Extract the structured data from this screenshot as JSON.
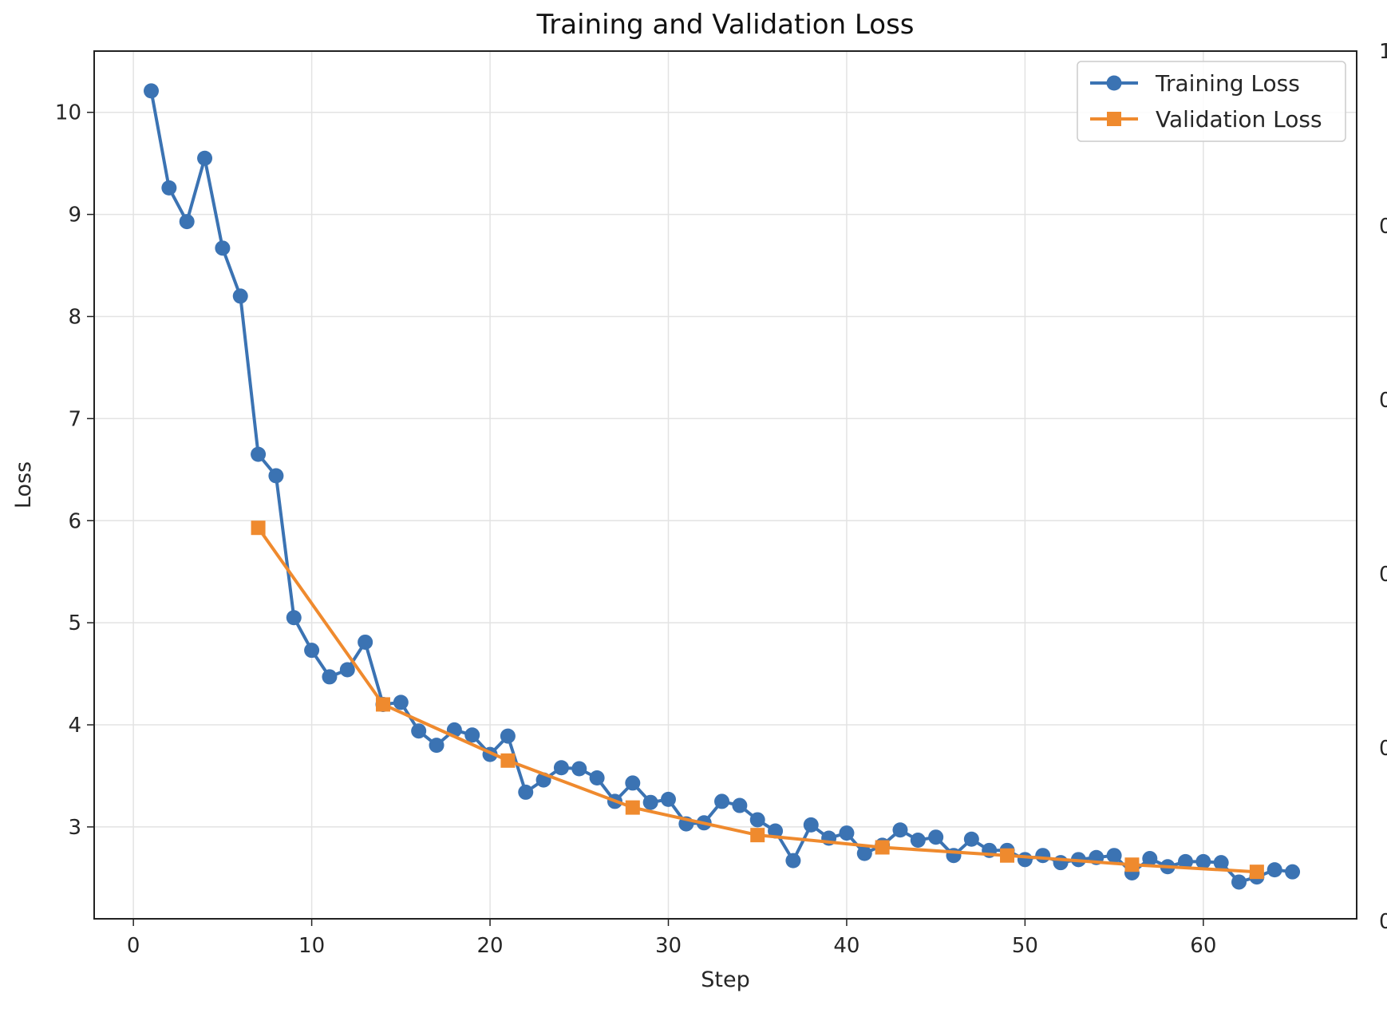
{
  "chart_data": {
    "type": "line",
    "title": "Training and Validation Loss",
    "xlabel": "Step",
    "ylabel": "Loss",
    "xlim": [
      -2.2,
      68.6
    ],
    "ylim": [
      2.1,
      10.6
    ],
    "xticks": [
      0,
      10,
      20,
      30,
      40,
      50,
      60
    ],
    "yticks": [
      3,
      4,
      5,
      6,
      7,
      8,
      9,
      10
    ],
    "grid": true,
    "legend_position": "top-right",
    "series": [
      {
        "name": "Training Loss",
        "color": "#3b73b3",
        "marker": "circle",
        "x": [
          1,
          2,
          3,
          4,
          5,
          6,
          7,
          8,
          9,
          10,
          11,
          12,
          13,
          14,
          15,
          16,
          17,
          18,
          19,
          20,
          21,
          22,
          23,
          24,
          25,
          26,
          27,
          28,
          29,
          30,
          31,
          32,
          33,
          34,
          35,
          36,
          37,
          38,
          39,
          40,
          41,
          42,
          43,
          44,
          45,
          46,
          47,
          48,
          49,
          50,
          51,
          52,
          53,
          54,
          55,
          56,
          57,
          58,
          59,
          60,
          61,
          62,
          63,
          64,
          65
        ],
        "values": [
          10.21,
          9.26,
          8.93,
          9.55,
          8.67,
          8.2,
          6.65,
          6.44,
          5.05,
          4.73,
          4.47,
          4.54,
          4.81,
          4.2,
          4.22,
          3.94,
          3.8,
          3.95,
          3.9,
          3.71,
          3.89,
          3.34,
          3.46,
          3.58,
          3.57,
          3.48,
          3.25,
          3.43,
          3.24,
          3.27,
          3.03,
          3.04,
          3.25,
          3.21,
          3.07,
          2.96,
          2.67,
          3.02,
          2.89,
          2.94,
          2.74,
          2.82,
          2.97,
          2.87,
          2.9,
          2.72,
          2.88,
          2.77,
          2.77,
          2.68,
          2.72,
          2.65,
          2.68,
          2.7,
          2.72,
          2.55,
          2.69,
          2.61,
          2.66,
          2.66,
          2.65,
          2.46,
          2.51,
          2.58,
          2.56
        ]
      },
      {
        "name": "Validation Loss",
        "color": "#ef8a2e",
        "marker": "square",
        "x": [
          7,
          14,
          21,
          28,
          35,
          42,
          49,
          56,
          63
        ],
        "values": [
          5.93,
          4.2,
          3.65,
          3.19,
          2.92,
          2.8,
          2.72,
          2.63,
          2.56
        ]
      }
    ],
    "right_axis_tick_fragments": [
      "1",
      "0",
      "0",
      "0",
      "0",
      "0"
    ]
  }
}
